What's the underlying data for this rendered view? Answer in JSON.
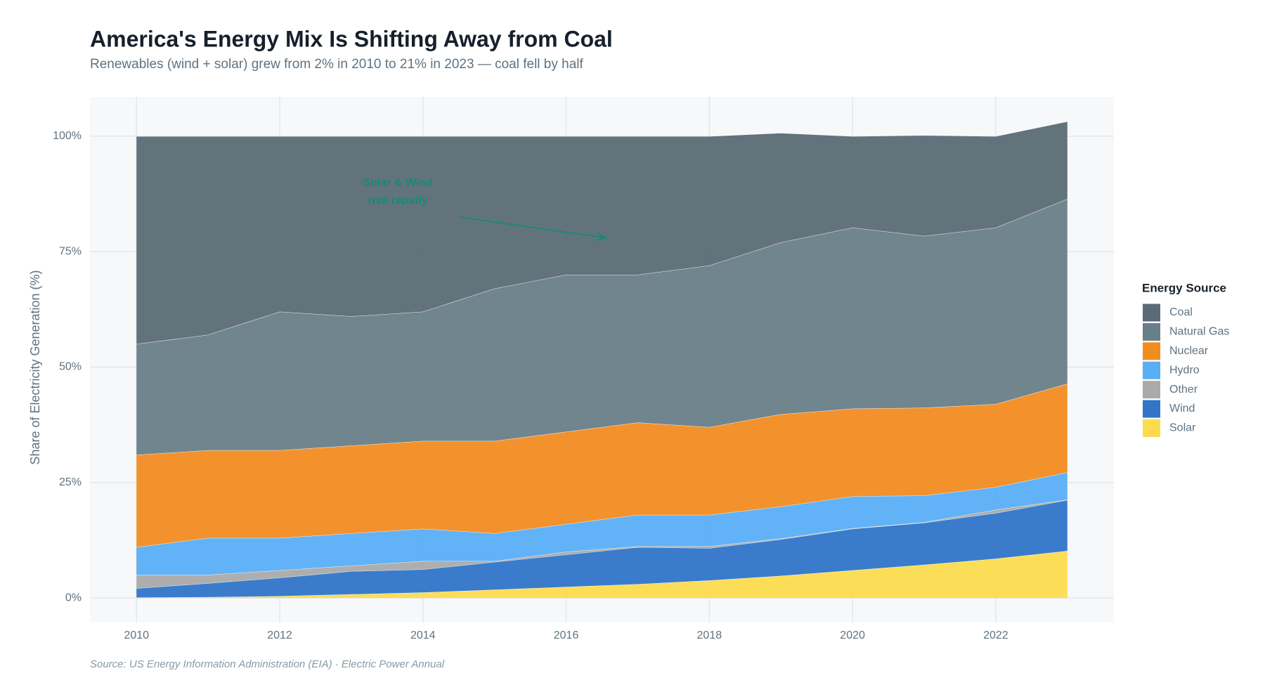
{
  "chart_data": {
    "type": "stacked-area",
    "title": "America's Energy Mix Is Shifting Away from Coal",
    "subtitle": "Renewables (wind + solar) grew from 2% in 2010 to 21% in 2023 — coal fell by half",
    "y_label": "Share of Electricity Generation (%)",
    "source": "Source: US Energy Information Administration (EIA) · Electric Power Annual",
    "legend_title": "Energy Source",
    "annotation": {
      "text": [
        "Solar & Wind",
        "rise rapidly"
      ],
      "color": "#168a77"
    },
    "x": [
      2010,
      2011,
      2012,
      2013,
      2014,
      2015,
      2016,
      2017,
      2018,
      2019,
      2020,
      2021,
      2022,
      2023
    ],
    "series": [
      {
        "name": "Coal",
        "color": "#5b6b75",
        "values": [
          45,
          43,
          38,
          39,
          38,
          33,
          30,
          30,
          28,
          23.7,
          19.8,
          21.8,
          19.8,
          16.8
        ]
      },
      {
        "name": "Natural Gas",
        "color": "#687e88",
        "values": [
          24,
          25,
          30,
          28,
          28,
          33,
          34,
          32,
          35,
          37.2,
          39.2,
          37.2,
          38.2,
          40
        ]
      },
      {
        "name": "Nuclear",
        "color": "#f28c21",
        "values": [
          20,
          19,
          19,
          19,
          19,
          20,
          20,
          20,
          19,
          20,
          19,
          19,
          18,
          19.2
        ]
      },
      {
        "name": "Hydro",
        "color": "#59aef5",
        "values": [
          6,
          8,
          7,
          7,
          7,
          6,
          6,
          6.8,
          6.8,
          6.9,
          6.9,
          5.8,
          4.9,
          5.9
        ]
      },
      {
        "name": "Other",
        "color": "#aaaaaa",
        "values": [
          2.9,
          1.8,
          1.6,
          1.2,
          1.8,
          0.2,
          0.6,
          0.2,
          0.4,
          0.2,
          0.1,
          0.1,
          0.7,
          0.1
        ]
      },
      {
        "name": "Wind",
        "color": "#2f75c8",
        "values": [
          2,
          3,
          4,
          5,
          5,
          6,
          7,
          8,
          7,
          7.9,
          9,
          9.1,
          9.9,
          11
        ]
      },
      {
        "name": "Solar",
        "color": "#fcdb4e",
        "values": [
          0.1,
          0.2,
          0.4,
          0.8,
          1.2,
          1.8,
          2.4,
          3,
          3.8,
          4.8,
          6,
          7.2,
          8.5,
          10.2
        ]
      }
    ],
    "xlim": [
      2009.35,
      2023.65
    ],
    "xticks": [
      2010,
      2012,
      2014,
      2016,
      2018,
      2020,
      2022
    ],
    "ylim": [
      -5.3,
      108.5
    ],
    "yticks": [
      {
        "value": 0,
        "label": "0%"
      },
      {
        "value": 25,
        "label": "25%"
      },
      {
        "value": 50,
        "label": "50%"
      },
      {
        "value": 75,
        "label": "75%"
      },
      {
        "value": 100,
        "label": "100%"
      }
    ],
    "grid": true
  }
}
